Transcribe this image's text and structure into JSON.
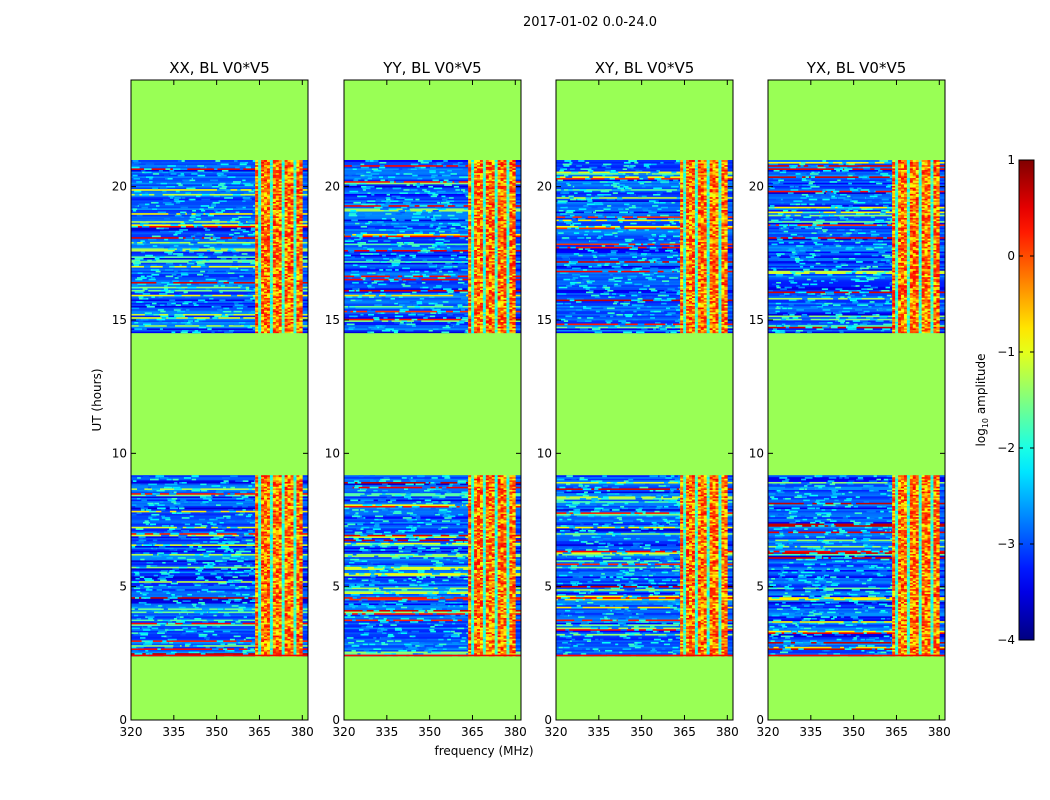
{
  "suptitle": "2017-01-02 0.0-24.0",
  "colors": {
    "flag": "#99ff55",
    "background_noise": "#0a1fd6",
    "frame": "#000000"
  },
  "chart_data": {
    "type": "heatmap",
    "xlabel": "frequency (MHz)",
    "ylabel": "UT (hours)",
    "xlim": [
      320,
      382
    ],
    "ylim": [
      0,
      24
    ],
    "xticks": [
      320,
      335,
      350,
      365,
      380
    ],
    "yticks": [
      0,
      5,
      10,
      15,
      20
    ],
    "panels": [
      {
        "title": "XX, BL V0*V5"
      },
      {
        "title": "YY, BL V0*V5"
      },
      {
        "title": "XY, BL V0*V5"
      },
      {
        "title": "YX, BL V0*V5"
      }
    ],
    "flagged_time_ranges_hours": [
      [
        0,
        2.4
      ],
      [
        9.2,
        14.5
      ],
      [
        21.0,
        24.0
      ]
    ],
    "rfi_band_mhz": [
      363.5,
      380
    ],
    "colorbar": {
      "label": "log10 amplitude",
      "label_base": "log",
      "label_sub": "10",
      "label_rest": " amplitude",
      "range": [
        -4,
        1
      ],
      "ticks": [
        "1",
        "0",
        "−1",
        "−2",
        "−3",
        "−4"
      ],
      "colormap": "jet"
    }
  }
}
